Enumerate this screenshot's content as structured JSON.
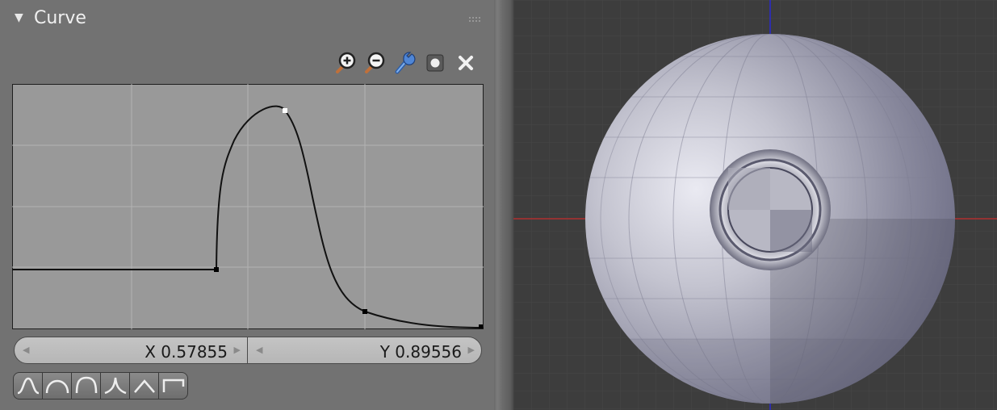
{
  "panel": {
    "title": "Curve",
    "collapse_icon": "triangle-down-icon"
  },
  "toolbar": {
    "tools": [
      {
        "name": "zoom-in-icon"
      },
      {
        "name": "zoom-out-icon"
      },
      {
        "name": "wrench-icon"
      },
      {
        "name": "clipping-toggle-icon"
      },
      {
        "name": "delete-point-icon"
      }
    ]
  },
  "curve": {
    "x_label": "X 0.57855",
    "y_label": "Y 0.89556",
    "selected_point": {
      "x": 0.57855,
      "y": 0.89556
    },
    "control_points": [
      {
        "x": 0.0,
        "y": 0.25
      },
      {
        "x": 0.43,
        "y": 0.25
      },
      {
        "x": 0.58,
        "y": 0.9
      },
      {
        "x": 0.75,
        "y": 0.06
      },
      {
        "x": 1.0,
        "y": 0.0
      }
    ]
  },
  "presets": [
    {
      "name": "preset-smooth-icon"
    },
    {
      "name": "preset-sphere-icon"
    },
    {
      "name": "preset-root-icon"
    },
    {
      "name": "preset-sharp-icon"
    },
    {
      "name": "preset-linear-icon"
    },
    {
      "name": "preset-constant-icon"
    }
  ],
  "colors": {
    "panel_bg": "#727272",
    "curve_bg": "#999999",
    "viewport_bg": "#3d3d3d",
    "axis_red": "#b03030",
    "axis_blue": "#2a2ad0",
    "sphere": "#a8a8b8"
  }
}
